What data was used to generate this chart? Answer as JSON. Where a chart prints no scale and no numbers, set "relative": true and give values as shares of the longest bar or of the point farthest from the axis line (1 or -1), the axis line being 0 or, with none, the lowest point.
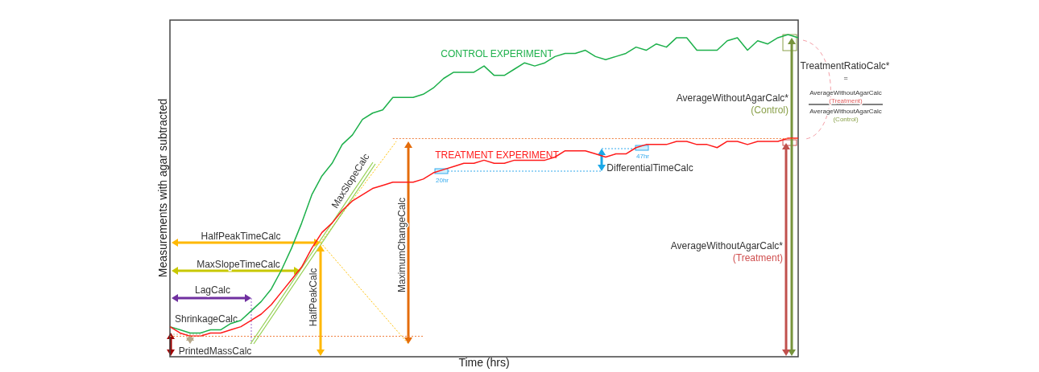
{
  "chart_data": {
    "type": "line",
    "relative": true,
    "xlabel": "Time (hrs)",
    "ylabel": "Measurements with agar subtracted",
    "categories": [
      null,
      null,
      null,
      null,
      null,
      null,
      null,
      null,
      null,
      null,
      null,
      null,
      null,
      null,
      null,
      null,
      null,
      null,
      null,
      null,
      null,
      null,
      null,
      null,
      null,
      null,
      null,
      null,
      null,
      null,
      null,
      null,
      null,
      null,
      null,
      null,
      null,
      null,
      null,
      null,
      null,
      null,
      null,
      null,
      null,
      null,
      null,
      null,
      null,
      null,
      null,
      null,
      null,
      null,
      null,
      null,
      null,
      null,
      null,
      null,
      null,
      null,
      null
    ],
    "series": [
      {
        "name": "CONTROL EXPERIMENT",
        "color": "#1db04b",
        "values": [
          0.07,
          0.06,
          0.05,
          0.05,
          0.06,
          0.06,
          0.08,
          0.09,
          0.12,
          0.15,
          0.19,
          0.25,
          0.32,
          0.4,
          0.49,
          0.55,
          0.59,
          0.65,
          0.68,
          0.73,
          0.75,
          0.76,
          0.8,
          0.8,
          0.8,
          0.81,
          0.83,
          0.86,
          0.88,
          0.88,
          0.88,
          0.9,
          0.87,
          0.87,
          0.89,
          0.91,
          0.9,
          0.91,
          0.93,
          0.94,
          0.94,
          0.95,
          0.93,
          0.92,
          0.93,
          0.94,
          0.96,
          0.95,
          0.97,
          0.96,
          0.99,
          0.99,
          0.95,
          0.95,
          0.95,
          0.98,
          0.99,
          0.95,
          0.98,
          0.97,
          0.99,
          1.0,
          0.99
        ]
      },
      {
        "name": "TREATMENT EXPERIMENT",
        "color": "#ff1a1a",
        "values": [
          0.07,
          0.05,
          0.04,
          0.04,
          0.05,
          0.05,
          0.06,
          0.07,
          0.09,
          0.11,
          0.14,
          0.18,
          0.22,
          0.26,
          0.32,
          0.37,
          0.4,
          0.44,
          0.47,
          0.49,
          0.51,
          0.52,
          0.53,
          0.53,
          0.53,
          0.54,
          0.56,
          0.57,
          0.58,
          0.59,
          0.59,
          0.6,
          0.59,
          0.59,
          0.6,
          0.6,
          0.6,
          0.6,
          0.61,
          0.63,
          0.63,
          0.63,
          0.62,
          0.61,
          0.62,
          0.62,
          0.64,
          0.65,
          0.65,
          0.65,
          0.66,
          0.66,
          0.65,
          0.65,
          0.64,
          0.66,
          0.66,
          0.65,
          0.66,
          0.66,
          0.66,
          0.67,
          0.67
        ]
      }
    ],
    "ref_lines": [
      {
        "axis": "y",
        "value": 0.67,
        "color": "#f08040",
        "line_style": "dotted"
      },
      {
        "axis": "y",
        "value": 0.04,
        "color": "#f08040",
        "line_style": "dotted"
      }
    ],
    "annotations": [
      "MaxSlopeCalc",
      "HalfPeakTimeCalc",
      "MaxSlopeTimeCalc",
      "LagCalc",
      "ShrinkageCalc",
      "PrintedMassCalc",
      "HalfPeakCalc",
      "MaximumChangeCalc",
      "20hr",
      "47hr",
      "DifferentialTimeCalc",
      "AverageWithoutAgarCalc*",
      "(Control)",
      "AverageWithoutAgarCalc*",
      "(Treatment)",
      "TreatmentRatioCalc*",
      "=",
      "AverageWithoutAgarCalc",
      "(Treatment)",
      "AverageWithoutAgarCalc",
      "(Control)"
    ]
  }
}
